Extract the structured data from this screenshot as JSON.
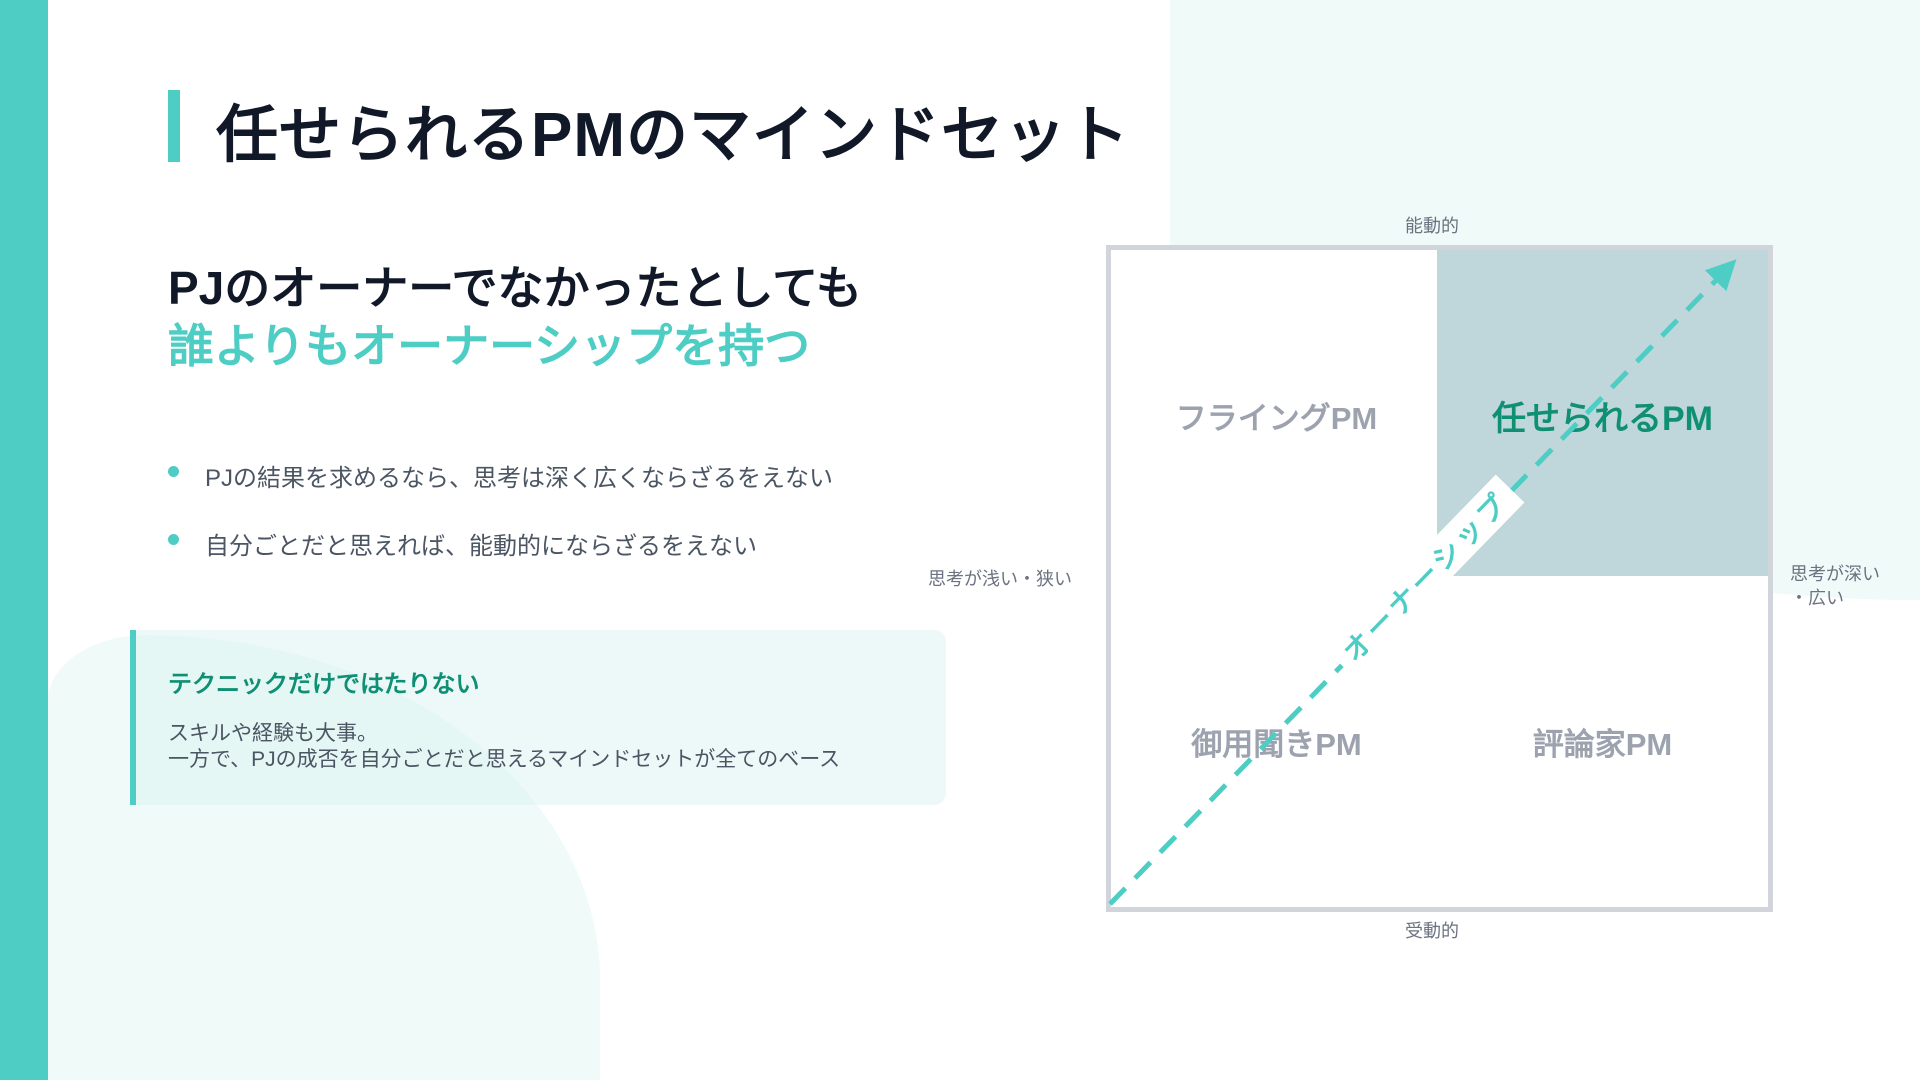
{
  "slide": {
    "title": "任せられるPMのマインドセット",
    "subtitle_line1": "PJのオーナーでなかったとしても",
    "subtitle_line2": "誰よりもオーナーシップを持つ",
    "bullets": [
      "PJの結果を求めるなら、思考は深く広くならざるをえない",
      "自分ごとだと思えれば、能動的にならざるをえない"
    ],
    "callout": {
      "title": "テクニックだけではたりない",
      "body_line1": "スキルや経験も大事。",
      "body_line2": "一方で、PJの成否を自分ごとだと思えるマインドセットが全てのベース"
    }
  },
  "matrix": {
    "axis_top": "能動的",
    "axis_bottom": "受動的",
    "axis_left": "思考が浅い・狭い",
    "axis_right_line1": "思考が深い",
    "axis_right_line2": "・広い",
    "quadrants": {
      "top_left": "フライングPM",
      "top_right": "任せられるPM",
      "bottom_left": "御用聞きPM",
      "bottom_right": "評論家PM"
    },
    "arrow_label": "オーナーシップ",
    "highlight_quadrant": "top_right"
  },
  "colors": {
    "accent": "#4ecdc4",
    "highlight_fill": "#bfd7da",
    "highlight_text": "#0f8f73",
    "text_dark": "#111827",
    "muted": "#9ca3af"
  }
}
